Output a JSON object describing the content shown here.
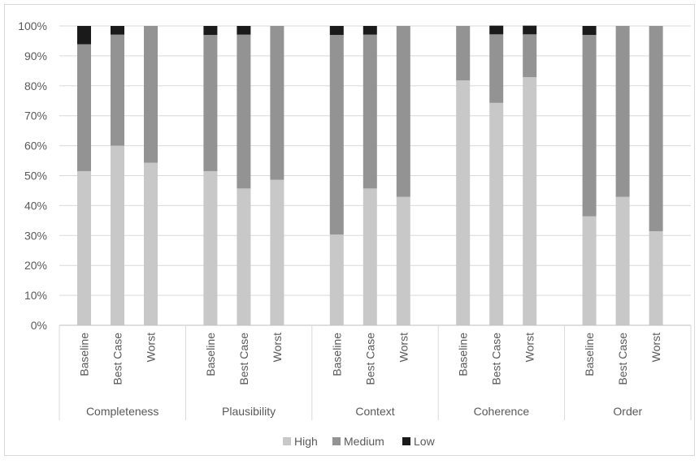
{
  "chart_data": {
    "type": "bar",
    "stacked": true,
    "percent": true,
    "groups": [
      "Completeness",
      "Plausibility",
      "Context",
      "Coherence",
      "Order"
    ],
    "categories": [
      "Baseline",
      "Best Case",
      "Worst"
    ],
    "y_ticks": [
      "0%",
      "10%",
      "20%",
      "30%",
      "40%",
      "50%",
      "60%",
      "70%",
      "80%",
      "90%",
      "100%"
    ],
    "ylim": [
      0,
      100
    ],
    "grid": true,
    "legend_position": "bottom",
    "series": [
      {
        "name": "High",
        "color": "#c8c8c8",
        "values": [
          [
            51.5,
            60,
            54.3
          ],
          [
            51.5,
            45.7,
            48.6
          ],
          [
            30.3,
            45.7,
            42.9
          ],
          [
            81.8,
            74.3,
            82.9
          ],
          [
            36.4,
            42.9,
            31.4
          ]
        ]
      },
      {
        "name": "Medium",
        "color": "#939393",
        "values": [
          [
            42.4,
            37.1,
            45.7
          ],
          [
            45.5,
            51.4,
            51.4
          ],
          [
            66.7,
            51.4,
            57.1
          ],
          [
            18.2,
            22.9,
            14.3
          ],
          [
            60.6,
            57.1,
            68.6
          ]
        ]
      },
      {
        "name": "Low",
        "color": "#1a1a1a",
        "values": [
          [
            6.1,
            2.9,
            0
          ],
          [
            3,
            2.9,
            0
          ],
          [
            3,
            2.9,
            0
          ],
          [
            0,
            2.9,
            2.9
          ],
          [
            3,
            0,
            0
          ]
        ]
      }
    ]
  }
}
